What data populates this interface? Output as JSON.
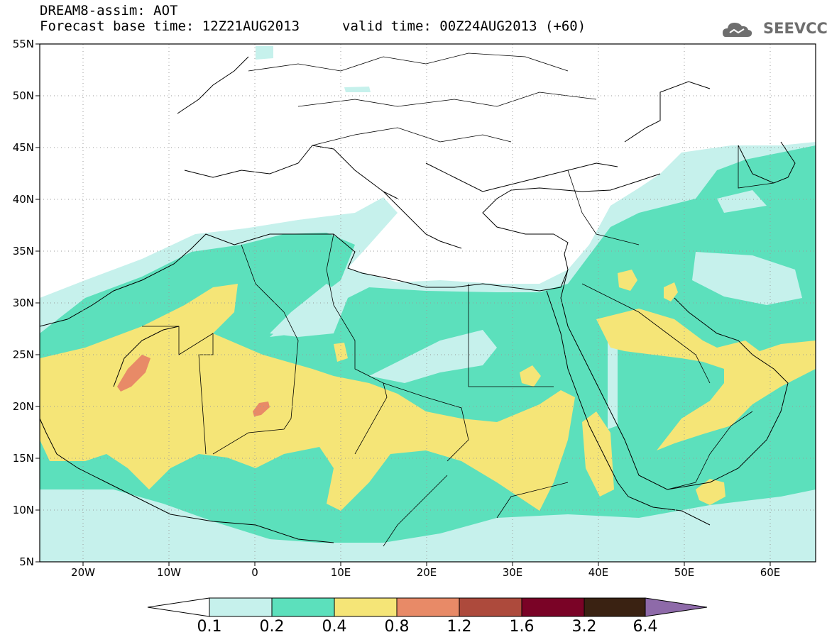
{
  "header": {
    "title": "DREAM8-assim: AOT",
    "base_time": "Forecast base time: 12Z21AUG2013",
    "valid_time": "valid time: 00Z24AUG2013 (+60)"
  },
  "logo": {
    "text": "SEEVCCC",
    "icon": "cloud-icon",
    "color": "#6e6e6e"
  },
  "map": {
    "lat_labels": [
      "55N",
      "50N",
      "45N",
      "40N",
      "35N",
      "30N",
      "25N",
      "20N",
      "15N",
      "10N",
      "5N"
    ],
    "lon_labels": [
      "20W",
      "10W",
      "0",
      "10E",
      "20E",
      "30E",
      "40E",
      "50E",
      "60E"
    ],
    "extent": {
      "lon_min": -25,
      "lon_max": 65,
      "lat_min": 5,
      "lat_max": 55
    },
    "gridlines": "dotted"
  },
  "legend": {
    "labels": [
      "0.1",
      "0.2",
      "0.4",
      "0.8",
      "1.2",
      "1.6",
      "3.2",
      "6.4"
    ],
    "colors": [
      "#ffffff",
      "#c6f1ec",
      "#5ce0bc",
      "#f5e577",
      "#e88a67",
      "#ad4a3c",
      "#7a0326",
      "#3a2212",
      "#8e6aa9"
    ]
  }
}
